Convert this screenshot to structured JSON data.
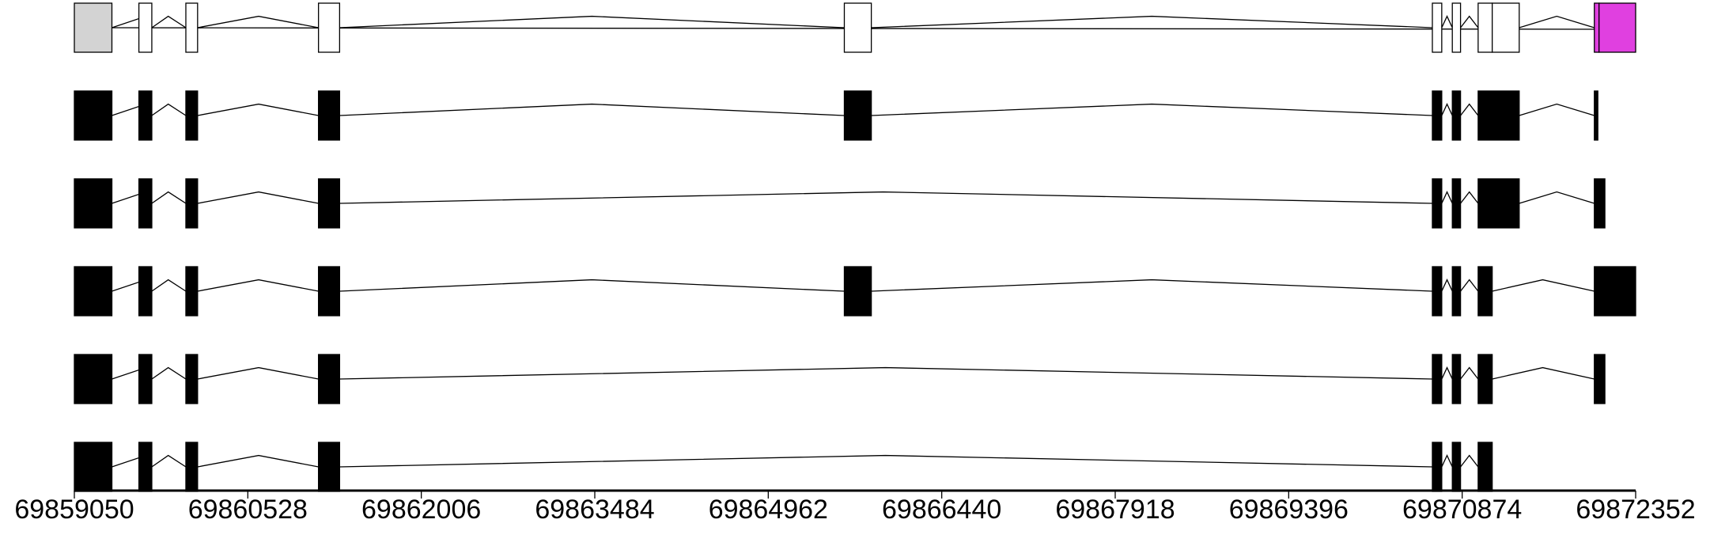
{
  "chart_data": {
    "type": "gene_structure",
    "x_axis": {
      "ticks": [
        "69859050",
        "69860528",
        "69862006",
        "69863484",
        "69864962",
        "69866440",
        "69867918",
        "69869396",
        "69870874",
        "69872352"
      ],
      "range": [
        69859050,
        69872352
      ]
    },
    "colors": {
      "exon_filled": "#000000",
      "exon_open": "#ffffff",
      "utr_grey": "#d3d3d3",
      "highlight_magenta": "#e040e0",
      "axis": "#000000"
    },
    "tracks": [
      {
        "exons": [
          [
            69859050,
            69859370,
            "grey"
          ],
          [
            69859600,
            69859710,
            "open"
          ],
          [
            69860000,
            69860100,
            "open"
          ],
          [
            69861130,
            69861310,
            "open"
          ],
          [
            69865610,
            69865840,
            "open"
          ],
          [
            69870620,
            69870700,
            "open"
          ],
          [
            69870790,
            69870860,
            "open"
          ],
          [
            69871010,
            69871130,
            "open"
          ],
          [
            69871130,
            69871360,
            "open"
          ],
          [
            69872000,
            69872040,
            "magenta"
          ],
          [
            69872040,
            69872352,
            "magenta"
          ]
        ],
        "introns": [
          [
            69859370,
            69859600,
            69859660
          ],
          [
            69859710,
            69860000,
            69859850
          ],
          [
            69860100,
            69861130,
            69860620
          ],
          [
            69861310,
            69865610,
            69863460
          ],
          [
            69865840,
            69870620,
            69868230
          ],
          [
            69870700,
            69870790,
            69870745
          ],
          [
            69870860,
            69871010,
            69870935
          ],
          [
            69871360,
            69872000,
            69871680
          ],
          [
            69872050,
            69872352,
            69872210
          ]
        ],
        "spanning_line": [
          69859050,
          69872352
        ]
      },
      {
        "exons": [
          [
            69859050,
            69859370,
            "filled"
          ],
          [
            69859600,
            69859710,
            "filled"
          ],
          [
            69860000,
            69860100,
            "filled"
          ],
          [
            69861130,
            69861310,
            "filled"
          ],
          [
            69865610,
            69865840,
            "filled"
          ],
          [
            69870620,
            69870700,
            "filled"
          ],
          [
            69870790,
            69870860,
            "filled"
          ],
          [
            69871010,
            69871360,
            "filled"
          ],
          [
            69872000,
            69872030,
            "filled"
          ]
        ],
        "introns": [
          [
            69859370,
            69859600,
            69859660
          ],
          [
            69859710,
            69860000,
            69859850
          ],
          [
            69860100,
            69861130,
            69860620
          ],
          [
            69861310,
            69865610,
            69863460
          ],
          [
            69865840,
            69870620,
            69868230
          ],
          [
            69870700,
            69870790,
            69870745
          ],
          [
            69870860,
            69871010,
            69870935
          ],
          [
            69871360,
            69872000,
            69871680
          ]
        ]
      },
      {
        "exons": [
          [
            69859050,
            69859370,
            "filled"
          ],
          [
            69859600,
            69859710,
            "filled"
          ],
          [
            69860000,
            69860100,
            "filled"
          ],
          [
            69861130,
            69861310,
            "filled"
          ],
          [
            69870620,
            69870700,
            "filled"
          ],
          [
            69870790,
            69870860,
            "filled"
          ],
          [
            69871010,
            69871360,
            "filled"
          ],
          [
            69872000,
            69872090,
            "filled"
          ]
        ],
        "introns": [
          [
            69859370,
            69859600,
            69859660
          ],
          [
            69859710,
            69860000,
            69859850
          ],
          [
            69860100,
            69861130,
            69860620
          ],
          [
            69861310,
            69870620,
            69865940
          ],
          [
            69870700,
            69870790,
            69870745
          ],
          [
            69870860,
            69871010,
            69870935
          ],
          [
            69871360,
            69872000,
            69871680
          ]
        ]
      },
      {
        "exons": [
          [
            69859050,
            69859370,
            "filled"
          ],
          [
            69859600,
            69859710,
            "filled"
          ],
          [
            69860000,
            69860100,
            "filled"
          ],
          [
            69861130,
            69861310,
            "filled"
          ],
          [
            69865610,
            69865840,
            "filled"
          ],
          [
            69870620,
            69870700,
            "filled"
          ],
          [
            69870790,
            69870860,
            "filled"
          ],
          [
            69871010,
            69871130,
            "filled"
          ],
          [
            69872000,
            69872352,
            "filled"
          ]
        ],
        "introns": [
          [
            69859370,
            69859600,
            69859660
          ],
          [
            69859710,
            69860000,
            69859850
          ],
          [
            69860100,
            69861130,
            69860620
          ],
          [
            69861310,
            69865610,
            69863460
          ],
          [
            69865840,
            69870620,
            69868230
          ],
          [
            69870700,
            69870790,
            69870745
          ],
          [
            69870860,
            69871010,
            69870935
          ],
          [
            69871130,
            69872000,
            69871560
          ]
        ]
      },
      {
        "exons": [
          [
            69859050,
            69859370,
            "filled"
          ],
          [
            69859600,
            69859710,
            "filled"
          ],
          [
            69860000,
            69860100,
            "filled"
          ],
          [
            69861130,
            69861310,
            "filled"
          ],
          [
            69870620,
            69870700,
            "filled"
          ],
          [
            69870790,
            69870860,
            "filled"
          ],
          [
            69871010,
            69871130,
            "filled"
          ],
          [
            69872000,
            69872090,
            "filled"
          ]
        ],
        "introns": [
          [
            69859370,
            69859600,
            69859660
          ],
          [
            69859710,
            69860000,
            69859850
          ],
          [
            69860100,
            69861130,
            69860620
          ],
          [
            69861310,
            69870620,
            69865960
          ],
          [
            69870700,
            69870790,
            69870745
          ],
          [
            69870860,
            69871010,
            69870935
          ],
          [
            69871130,
            69872000,
            69871560
          ]
        ]
      },
      {
        "exons": [
          [
            69859050,
            69859370,
            "filled"
          ],
          [
            69859600,
            69859710,
            "filled"
          ],
          [
            69860000,
            69860100,
            "filled"
          ],
          [
            69861130,
            69861310,
            "filled"
          ],
          [
            69870620,
            69870700,
            "filled"
          ],
          [
            69870790,
            69870860,
            "filled"
          ],
          [
            69871010,
            69871130,
            "filled"
          ]
        ],
        "introns": [
          [
            69859370,
            69859600,
            69859660
          ],
          [
            69859710,
            69860000,
            69859850
          ],
          [
            69860100,
            69861130,
            69860620
          ],
          [
            69861310,
            69870620,
            69865960
          ],
          [
            69870700,
            69870790,
            69870745
          ],
          [
            69870860,
            69871010,
            69870935
          ]
        ]
      }
    ]
  }
}
